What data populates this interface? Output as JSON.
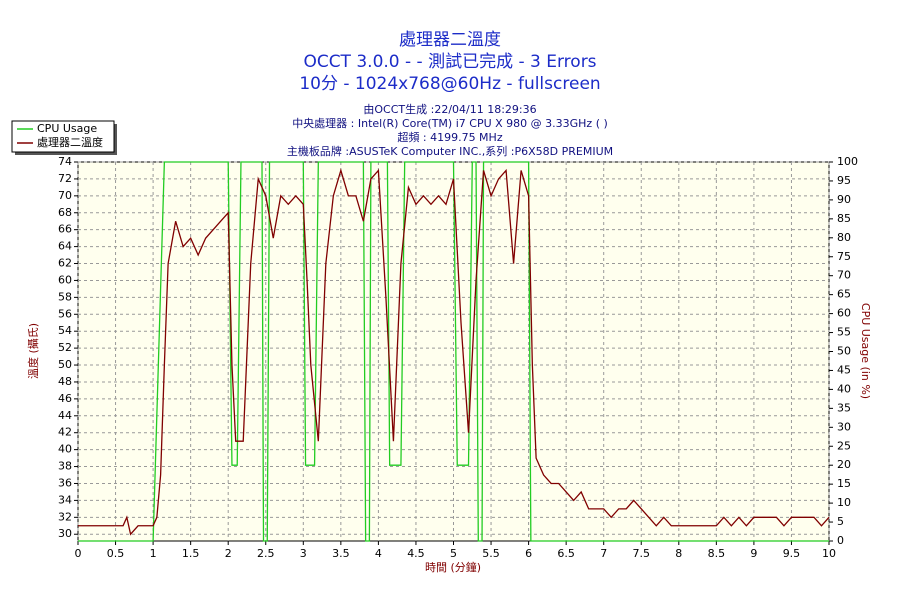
{
  "chart_data": {
    "type": "line",
    "title": "處理器二溫度",
    "subtitle": "OCCT 3.0.0 -  - 測試已完成 - 3 Errors",
    "subtitle2": "10分 - 1024x768@60Hz - fullscreen",
    "info": [
      "由OCCT生成 :22/04/11 18:29:36",
      "中央處理器 : Intel(R) Core(TM) i7 CPU X 980 @ 3.33GHz (  )",
      "超頻 : 4199.75 MHz",
      "主機板品牌 :ASUSTeK Computer INC.,系列 :P6X58D PREMIUM"
    ],
    "x_label": "時間 (分鐘)",
    "y_label": "溫度 (攝氏)",
    "y2_label": "CPU Usage (in %)",
    "xlim": [
      0,
      10
    ],
    "xticks": [
      0,
      0.5,
      1,
      1.5,
      2,
      2.5,
      3,
      3.5,
      4,
      4.5,
      5,
      5.5,
      6,
      6.5,
      7,
      7.5,
      8,
      8.5,
      9,
      9.5,
      10
    ],
    "ylim": [
      29.2,
      74
    ],
    "yticks": [
      30,
      32,
      34,
      36,
      38,
      40,
      42,
      44,
      46,
      48,
      50,
      52,
      54,
      56,
      58,
      60,
      62,
      64,
      66,
      68,
      70,
      72,
      74
    ],
    "y2lim": [
      0,
      100
    ],
    "y2ticks": [
      0,
      5,
      10,
      15,
      20,
      25,
      30,
      35,
      40,
      45,
      50,
      55,
      60,
      65,
      70,
      75,
      80,
      85,
      90,
      95,
      100
    ],
    "grid": true,
    "legend": "top-left",
    "series": [
      {
        "name": "CPU Usage",
        "color": "#22cc22",
        "axis": "y2",
        "x": [
          0,
          1.0,
          1.15,
          2.0,
          2.05,
          2.12,
          2.17,
          2.45,
          2.47,
          2.52,
          2.55,
          3.0,
          3.03,
          3.15,
          3.2,
          3.8,
          3.83,
          3.88,
          3.9,
          4.12,
          4.15,
          4.3,
          4.35,
          5.0,
          5.05,
          5.2,
          5.25,
          5.3,
          5.33,
          5.38,
          5.4,
          6.0,
          6.03,
          10
        ],
        "values": [
          0,
          0,
          100,
          100,
          20,
          20,
          100,
          100,
          0,
          0,
          100,
          100,
          20,
          20,
          100,
          100,
          0,
          0,
          100,
          100,
          20,
          20,
          100,
          100,
          20,
          20,
          100,
          100,
          0,
          0,
          100,
          100,
          0,
          0
        ]
      },
      {
        "name": "處理器二溫度",
        "color": "#800000",
        "x": [
          0,
          0.6,
          0.65,
          0.7,
          0.8,
          1.0,
          1.05,
          1.1,
          1.15,
          1.2,
          1.3,
          1.4,
          1.5,
          1.6,
          1.7,
          1.8,
          1.9,
          2.0,
          2.05,
          2.1,
          2.2,
          2.3,
          2.4,
          2.5,
          2.6,
          2.7,
          2.8,
          2.9,
          3.0,
          3.05,
          3.1,
          3.2,
          3.3,
          3.4,
          3.5,
          3.6,
          3.7,
          3.8,
          3.9,
          4.0,
          4.1,
          4.2,
          4.3,
          4.4,
          4.5,
          4.6,
          4.7,
          4.8,
          4.9,
          5.0,
          5.1,
          5.2,
          5.3,
          5.4,
          5.5,
          5.6,
          5.7,
          5.8,
          5.9,
          6.0,
          6.05,
          6.1,
          6.2,
          6.3,
          6.4,
          6.5,
          6.6,
          6.7,
          6.8,
          7.0,
          7.1,
          7.2,
          7.3,
          7.4,
          7.5,
          7.6,
          7.7,
          7.8,
          7.9,
          8.5,
          8.6,
          8.7,
          8.8,
          8.9,
          9.0,
          9.3,
          9.4,
          9.5,
          9.8,
          9.9,
          10
        ],
        "values": [
          31,
          31,
          32,
          30,
          31,
          31,
          32,
          37,
          50,
          62,
          67,
          64,
          65,
          63,
          65,
          66,
          67,
          68,
          50,
          41,
          41,
          62,
          72,
          70,
          65,
          70,
          69,
          70,
          69,
          60,
          50,
          41,
          62,
          70,
          73,
          70,
          70,
          67,
          72,
          73,
          58,
          41,
          62,
          71,
          69,
          70,
          69,
          70,
          69,
          72,
          55,
          42,
          60,
          73,
          70,
          72,
          73,
          62,
          73,
          70,
          50,
          39,
          37,
          36,
          36,
          35,
          34,
          35,
          33,
          33,
          32,
          33,
          33,
          34,
          33,
          32,
          31,
          32,
          31,
          31,
          32,
          31,
          32,
          31,
          32,
          32,
          31,
          32,
          32,
          31,
          32
        ]
      }
    ]
  }
}
